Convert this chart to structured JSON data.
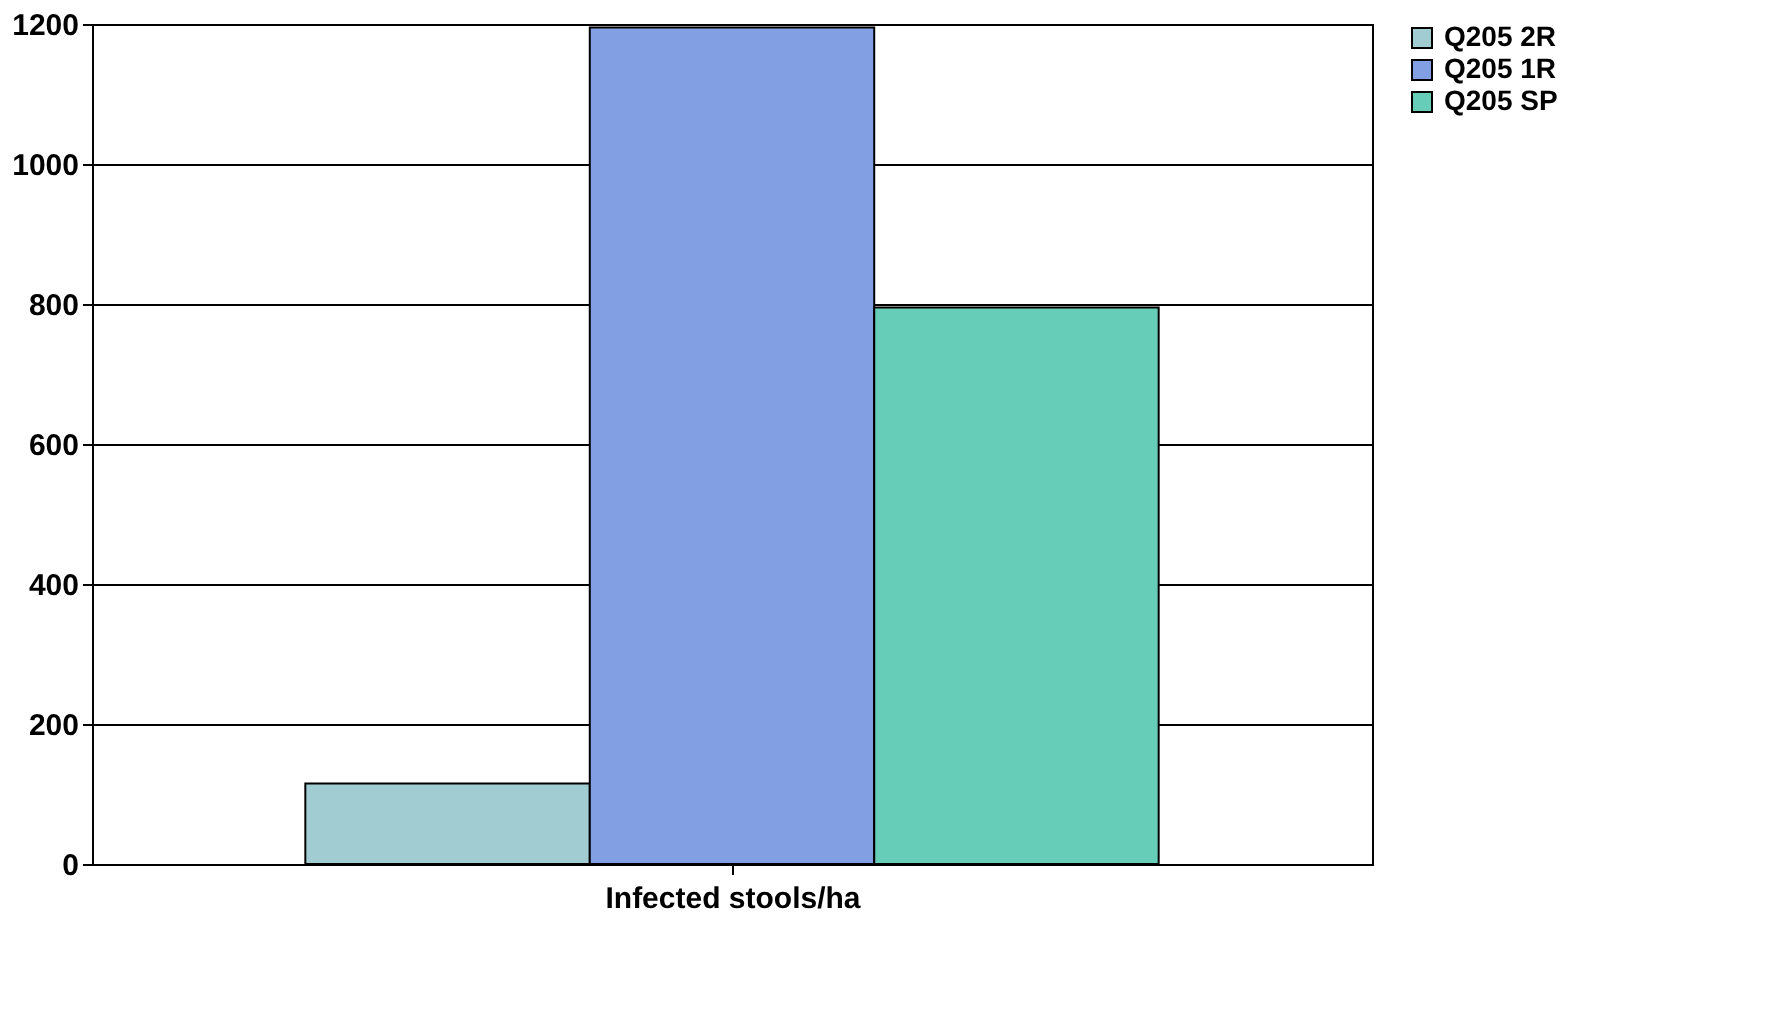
{
  "chart_data": {
    "type": "bar",
    "xlabel": "Infected stools/ha",
    "categories": [
      null
    ],
    "series": [
      {
        "name": "Q205 2R",
        "color": "#a1cdd2",
        "values": [
          115
        ]
      },
      {
        "name": "Q205 1R",
        "color": "#839fe3",
        "values": [
          1195
        ]
      },
      {
        "name": "Q205 SP",
        "color": "#66ceb8",
        "values": [
          795
        ]
      }
    ],
    "ylim": [
      0,
      1200
    ],
    "yticks": [
      0,
      200,
      400,
      600,
      800,
      1000,
      1200
    ],
    "grid": "y",
    "legend": "right"
  }
}
